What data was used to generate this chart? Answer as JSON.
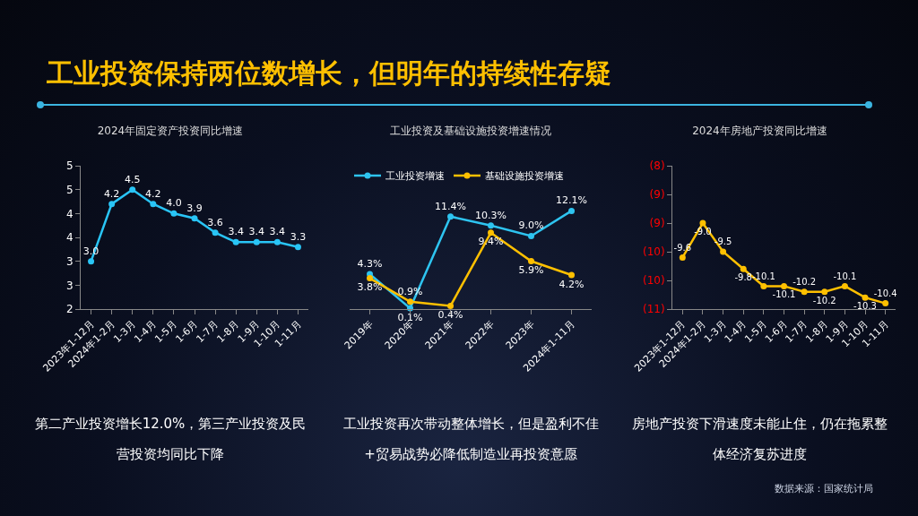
{
  "chart_data": [
    {
      "type": "other",
      "title": "工业投资保持两位数增长，但明年的持续性存疑",
      "annotations": [
        "数据来源：国家统计局"
      ]
    },
    {
      "type": "line",
      "title": "2024年固定资产投资同比增速",
      "categories": [
        "2023年1-12月",
        "2024年1-2月",
        "1-3月",
        "1-4月",
        "1-5月",
        "1-6月",
        "1-7月",
        "1-8月",
        "1-9月",
        "1-10月",
        "1-11月"
      ],
      "series": [
        {
          "color": "#29c5f6",
          "values": [
            3.0,
            4.2,
            4.5,
            4.2,
            4.0,
            3.9,
            3.6,
            3.4,
            3.4,
            3.4,
            3.3
          ],
          "value_labels": [
            "3.0",
            "4.2",
            "4.5",
            "4.2",
            "4.0",
            "3.9",
            "3.6",
            "3.4",
            "3.4",
            "3.4",
            "3.3"
          ]
        }
      ],
      "ylim": [
        2,
        5
      ],
      "yticks": [
        2,
        {
          "value": 2.5,
          "label": "3"
        },
        3,
        {
          "value": 3.5,
          "label": "4"
        },
        4,
        {
          "value": 4.5,
          "label": "5"
        },
        5
      ],
      "marker": "circle",
      "line_style": "solid",
      "annotations": [
        "第二产业投资增长12.0%，第三产业投资及民营投资均同比下降"
      ]
    },
    {
      "type": "line",
      "title": "工业投资及基础设施投资增速情况",
      "categories": [
        "2019年",
        "2020年",
        "2021年",
        "2022年",
        "2023年",
        "2024年1-11月"
      ],
      "series": [
        {
          "name": "工业投资增速",
          "color": "#2ec4f0",
          "values": [
            4.3,
            0.1,
            11.4,
            10.3,
            9.0,
            12.1
          ],
          "value_labels": [
            "4.3%",
            "0.1%",
            "11.4%",
            "10.3%",
            "9.0%",
            "12.1%"
          ]
        },
        {
          "name": "基础设施投资增速",
          "color": "#ffc000",
          "values": [
            3.8,
            0.9,
            0.4,
            9.4,
            5.9,
            4.2
          ],
          "value_labels": [
            "3.8%",
            "0.9%",
            "0.4%",
            "9.4%",
            "5.9%",
            "4.2%"
          ]
        }
      ],
      "legend": "top left",
      "tick_labels": "x",
      "marker": "circle",
      "line_style": "solid",
      "annotations": [
        "工业投资再次带动整体增长，但是盈利不佳+贸易战势必降低制造业再投资意愿"
      ]
    },
    {
      "type": "line",
      "title": "2024年房地产投资同比增速",
      "categories": [
        "2023年1-12月",
        "2024年1-2月",
        "1-3月",
        "1-4月",
        "1-5月",
        "1-6月",
        "1-7月",
        "1-8月",
        "1-9月",
        "1-10月",
        "1-11月"
      ],
      "series": [
        {
          "color": "#ffc000",
          "values": [
            -9.6,
            -9.0,
            -9.5,
            -9.8,
            -10.1,
            -10.1,
            -10.2,
            -10.2,
            -10.1,
            -10.3,
            -10.4
          ],
          "value_labels": [
            "-9.6",
            "-9.0",
            "-9.5",
            "-9.8",
            "-10.1",
            "-10.1",
            "-10.2",
            "-10.2",
            "-10.1",
            "-10.3",
            "-10.4"
          ]
        }
      ],
      "ylim": [
        -10.5,
        -8
      ],
      "yticks": [
        {
          "value": -8,
          "label": "(8)"
        },
        {
          "value": -8.5,
          "label": "(9)"
        },
        {
          "value": -9,
          "label": "(9)"
        },
        {
          "value": -9.5,
          "label": "(10)"
        },
        {
          "value": -10,
          "label": "(10)"
        },
        {
          "value": -10.5,
          "label": "(11)"
        }
      ],
      "marker": "circle",
      "line_style": "solid",
      "annotations": [
        "房地产投资下滑速度未能止住，仍在拖累整体经济复苏进度"
      ]
    }
  ]
}
